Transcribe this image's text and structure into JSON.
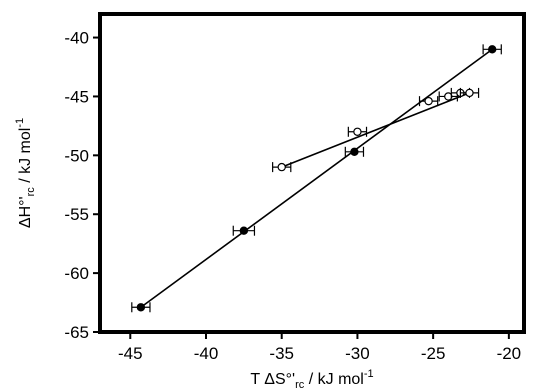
{
  "chart_data": {
    "type": "scatter",
    "xlabel": {
      "prefix": "T ΔS°'",
      "sub": "rc",
      "mid": " / kJ mol",
      "sup": "-1"
    },
    "ylabel": {
      "prefix": "ΔH°'",
      "sub": "rc",
      "mid": " / kJ mol",
      "sup": "-1"
    },
    "xlim": [
      -47,
      -19
    ],
    "ylim": [
      -65,
      -38
    ],
    "xticks": [
      -45,
      -40,
      -35,
      -30,
      -25,
      -20
    ],
    "yticks": [
      -40,
      -45,
      -50,
      -55,
      -60,
      -65
    ],
    "grid": false,
    "series": [
      {
        "marker": "filled-circle",
        "points": [
          {
            "x": -44.3,
            "y": -62.9,
            "xerr": 0.6
          },
          {
            "x": -37.5,
            "y": -56.4,
            "xerr": 0.7
          },
          {
            "x": -30.2,
            "y": -49.7,
            "xerr": 0.6
          },
          {
            "x": -21.1,
            "y": -41.0,
            "xerr": 0.6
          }
        ],
        "fit_line": {
          "x": [
            -44.3,
            -21.1
          ],
          "y": [
            -62.9,
            -41.0
          ]
        }
      },
      {
        "marker": "open-circle",
        "points": [
          {
            "x": -35.0,
            "y": -51.0,
            "xerr": 0.6
          },
          {
            "x": -30.0,
            "y": -48.0,
            "xerr": 0.6
          },
          {
            "x": -25.3,
            "y": -45.4,
            "xerr": 0.6
          },
          {
            "x": -24.0,
            "y": -45.0,
            "xerr": 0.6
          },
          {
            "x": -23.2,
            "y": -44.7,
            "xerr": 0.6
          },
          {
            "x": -22.6,
            "y": -44.7,
            "xerr": 0.6
          }
        ],
        "fit_line": {
          "x": [
            -35.0,
            -22.6
          ],
          "y": [
            -51.0,
            -44.7
          ]
        }
      }
    ]
  }
}
